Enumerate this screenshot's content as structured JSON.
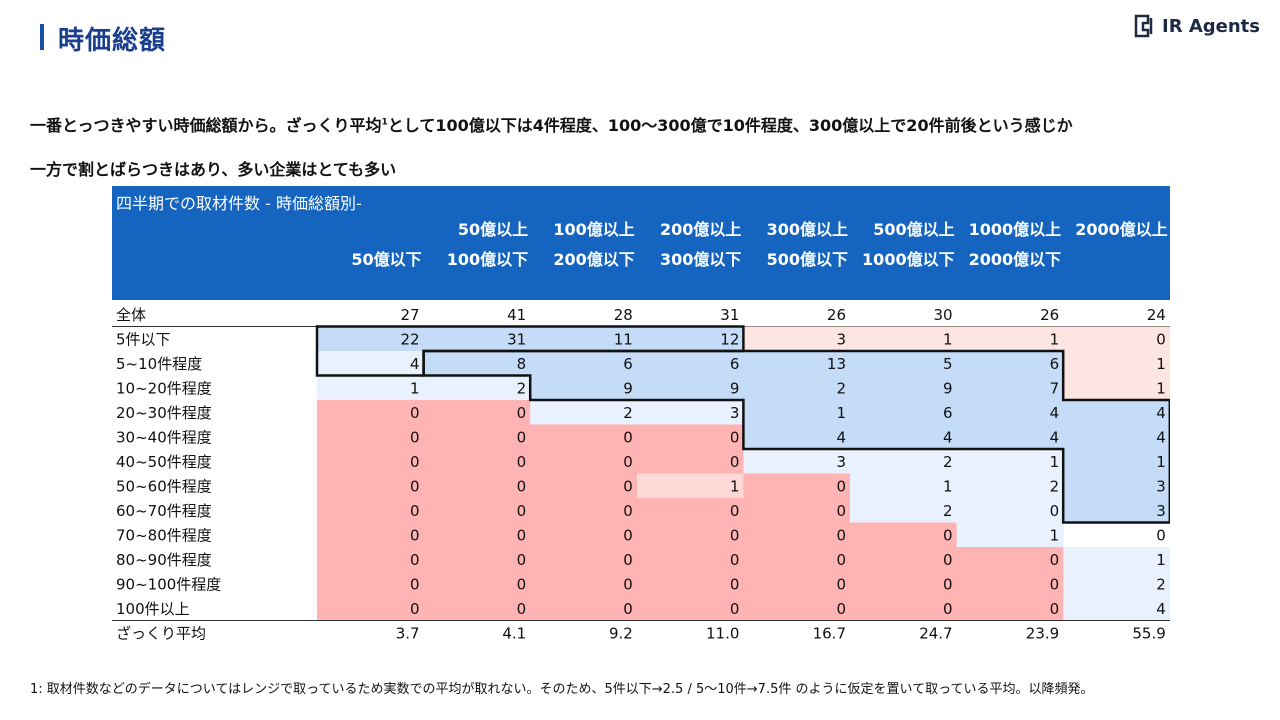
{
  "header": {
    "title": "時価総額",
    "logo_text": "IR Agents"
  },
  "summary": {
    "line1_main": "一番とっつきやすい時価総額から。ざっくり平均",
    "line1_sup": "1",
    "line1_rest": "として100億以下は4件程度、100～300億で10件程度、300億以上で20件前後という感じか",
    "line2": "一方で割とばらつきはあり、多い企業はとても多い"
  },
  "footnote": "1: 取材件数などのデータについてはレンジで取っているため実数での平均が取れない。そのため、5件以下→2.5 / 5～10件→7.5件 のように仮定を置いて取っている平均。以降頻発。",
  "colors": {
    "header": "#1565c0",
    "blue": "#c4dcf8",
    "light_blue": "#e8f1fd",
    "pink": "#fde6e1",
    "red": "#ffb3b3",
    "light_red": "#ffd9d6"
  },
  "chart_data": {
    "type": "table",
    "title": "四半期での取材件数 - 時価総額別-",
    "columns": [
      {
        "line1": "",
        "line2": "50億以下"
      },
      {
        "line1": "50億以上",
        "line2": "100億以下"
      },
      {
        "line1": "100億以上",
        "line2": "200億以下"
      },
      {
        "line1": "200億以上",
        "line2": "300億以下"
      },
      {
        "line1": "300億以上",
        "line2": "500億以下"
      },
      {
        "line1": "500億以上",
        "line2": "1000億以下"
      },
      {
        "line1": "1000億以上",
        "line2": "2000億以下"
      },
      {
        "line1": "2000億以上",
        "line2": ""
      }
    ],
    "total_row": {
      "label": "全体",
      "values": [
        "27",
        "41",
        "28",
        "31",
        "26",
        "30",
        "26",
        "24"
      ]
    },
    "rows": [
      {
        "label": "5件以下",
        "values": [
          "22",
          "31",
          "11",
          "12",
          "3",
          "1",
          "1",
          "0"
        ],
        "fills": [
          "B",
          "B",
          "B",
          "B",
          "P",
          "P",
          "P",
          "P"
        ]
      },
      {
        "label": "5~10件程度",
        "values": [
          "4",
          "8",
          "6",
          "6",
          "13",
          "5",
          "6",
          "1"
        ],
        "fills": [
          "L",
          "B",
          "B",
          "B",
          "B",
          "B",
          "B",
          "P"
        ]
      },
      {
        "label": "10~20件程度",
        "values": [
          "1",
          "2",
          "9",
          "9",
          "2",
          "9",
          "7",
          "1"
        ],
        "fills": [
          "L",
          "L",
          "B",
          "B",
          "B",
          "B",
          "B",
          "P"
        ]
      },
      {
        "label": "20~30件程度",
        "values": [
          "0",
          "0",
          "2",
          "3",
          "1",
          "6",
          "4",
          "4"
        ],
        "fills": [
          "R",
          "R",
          "L",
          "L",
          "B",
          "B",
          "B",
          "B"
        ]
      },
      {
        "label": "30~40件程度",
        "values": [
          "0",
          "0",
          "0",
          "0",
          "4",
          "4",
          "4",
          "4"
        ],
        "fills": [
          "R",
          "R",
          "R",
          "R",
          "B",
          "B",
          "B",
          "B"
        ]
      },
      {
        "label": "40~50件程度",
        "values": [
          "0",
          "0",
          "0",
          "0",
          "3",
          "2",
          "1",
          "1"
        ],
        "fills": [
          "R",
          "R",
          "R",
          "R",
          "L",
          "L",
          "L",
          "B"
        ]
      },
      {
        "label": "50~60件程度",
        "values": [
          "0",
          "0",
          "0",
          "1",
          "0",
          "1",
          "2",
          "3"
        ],
        "fills": [
          "R",
          "R",
          "R",
          "S",
          "R",
          "L",
          "L",
          "B"
        ]
      },
      {
        "label": "60~70件程度",
        "values": [
          "0",
          "0",
          "0",
          "0",
          "0",
          "2",
          "0",
          "3"
        ],
        "fills": [
          "R",
          "R",
          "R",
          "R",
          "R",
          "L",
          "L",
          "B"
        ]
      },
      {
        "label": "70~80件程度",
        "values": [
          "0",
          "0",
          "0",
          "0",
          "0",
          "0",
          "1",
          "0"
        ],
        "fills": [
          "R",
          "R",
          "R",
          "R",
          "R",
          "R",
          "L",
          "W"
        ]
      },
      {
        "label": "80~90件程度",
        "values": [
          "0",
          "0",
          "0",
          "0",
          "0",
          "0",
          "0",
          "1"
        ],
        "fills": [
          "R",
          "R",
          "R",
          "R",
          "R",
          "R",
          "R",
          "L"
        ]
      },
      {
        "label": "90~100件程度",
        "values": [
          "0",
          "0",
          "0",
          "0",
          "0",
          "0",
          "0",
          "2"
        ],
        "fills": [
          "R",
          "R",
          "R",
          "R",
          "R",
          "R",
          "R",
          "L"
        ]
      },
      {
        "label": "100件以上",
        "values": [
          "0",
          "0",
          "0",
          "0",
          "0",
          "0",
          "0",
          "4"
        ],
        "fills": [
          "R",
          "R",
          "R",
          "R",
          "R",
          "R",
          "R",
          "L"
        ]
      }
    ],
    "average_row": {
      "label": "ざっくり平均",
      "values": [
        "3.7",
        "4.1",
        "9.2",
        "11.0",
        "16.7",
        "24.7",
        "23.9",
        "55.9"
      ]
    }
  }
}
